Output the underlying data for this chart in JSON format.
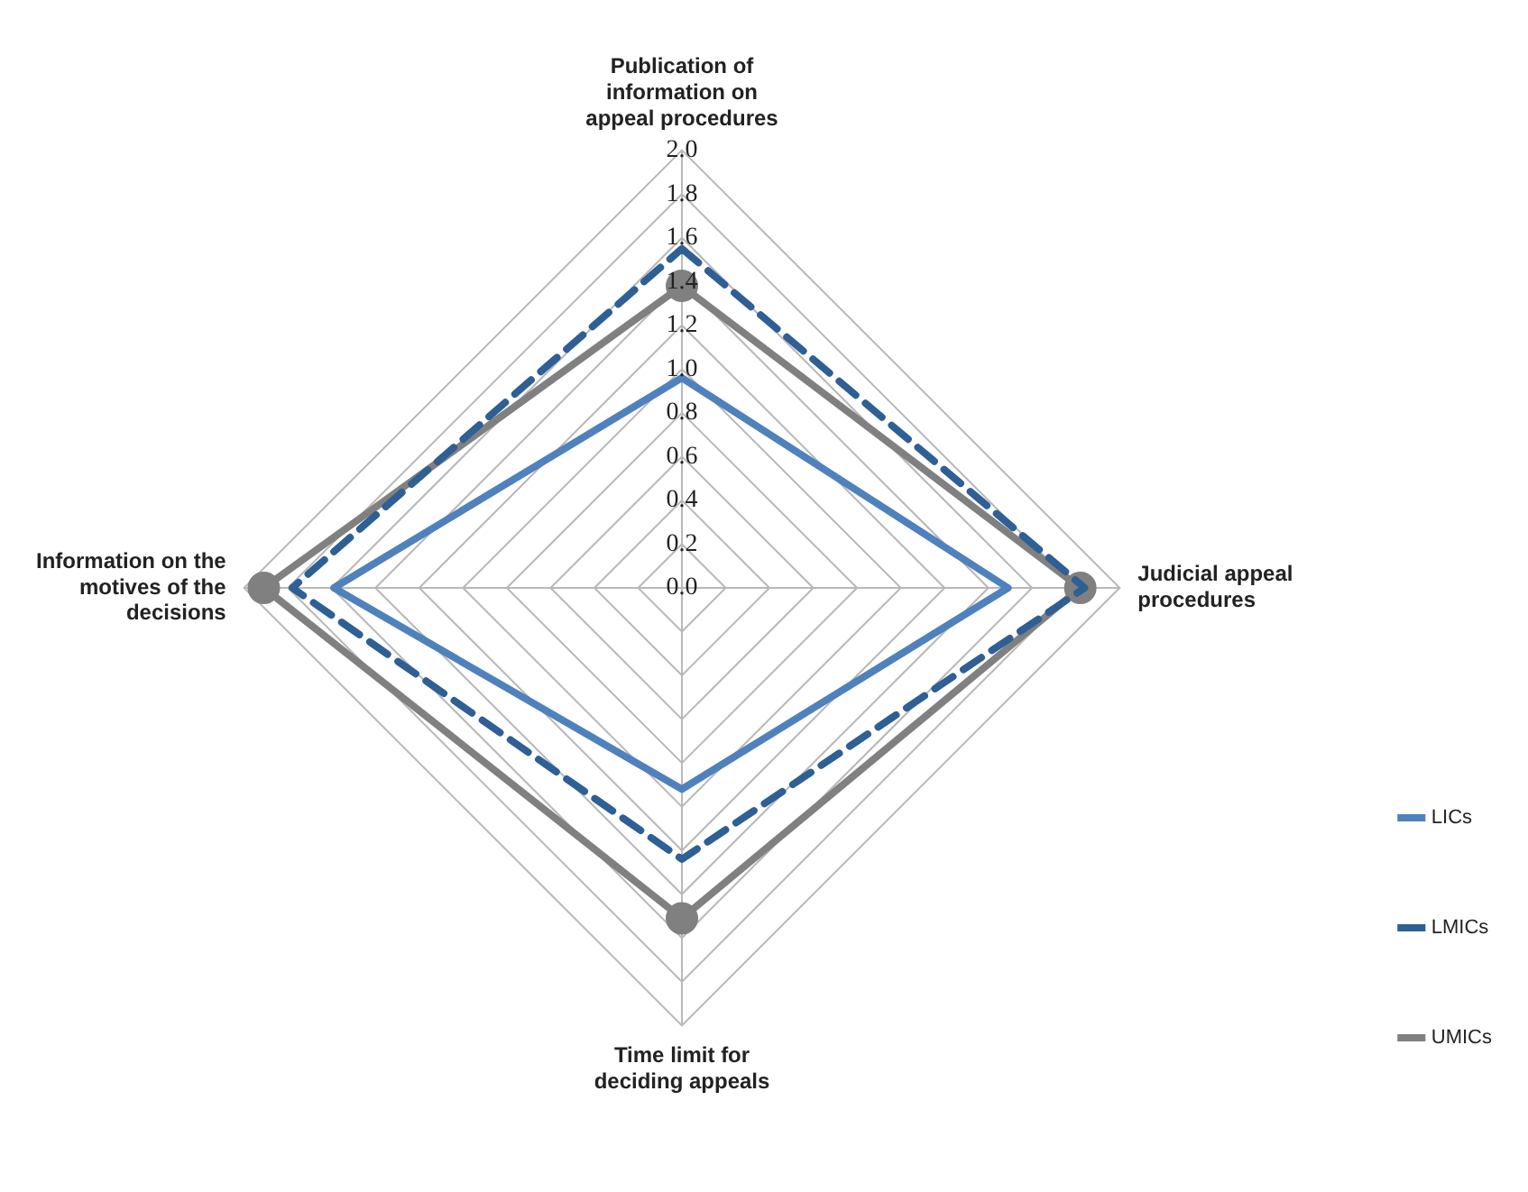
{
  "chart_data": {
    "type": "radar",
    "categories": [
      "Publication of information on appeal procedures",
      "Judicial appeal procedures",
      "Time limit for deciding appeals",
      "Information on the motives of the decisions"
    ],
    "series": [
      {
        "name": "LICs",
        "color": "#4f81bd",
        "values": [
          0.96,
          1.49,
          0.92,
          1.59
        ],
        "line_style": "solid",
        "marker": "none"
      },
      {
        "name": "LMICs",
        "color": "#2e5f95",
        "values": [
          1.55,
          1.84,
          1.24,
          1.78
        ],
        "line_style": "dashed",
        "marker": "none"
      },
      {
        "name": "UMICs",
        "color": "#808080",
        "values": [
          1.38,
          1.82,
          1.51,
          1.91
        ],
        "line_style": "solid",
        "marker": "circle"
      }
    ],
    "ylim": [
      0,
      2
    ],
    "yticks": [
      {
        "value": 0,
        "label": "0.0"
      },
      0.2,
      0.4,
      0.6,
      0.8,
      {
        "value": 1,
        "label": "1.0"
      },
      1.2,
      1.4,
      1.6,
      1.8,
      {
        "value": 2,
        "label": "2.0"
      }
    ],
    "grid": true,
    "legend": "bottom right"
  }
}
